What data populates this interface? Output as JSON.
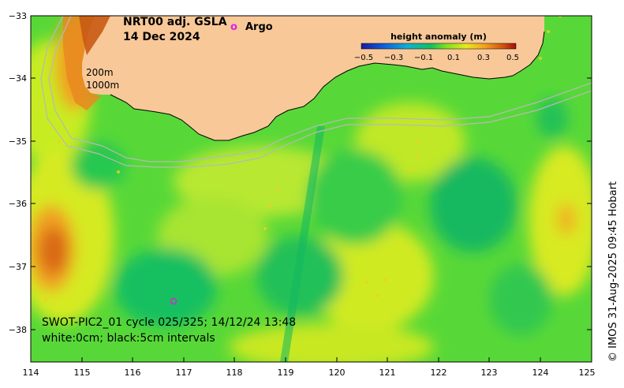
{
  "title": {
    "line1": "NRT00 adj. GSLA",
    "line2": "14 Dec 2024"
  },
  "legend": {
    "argo_marker": "o",
    "argo_label": "Argo"
  },
  "colorbar": {
    "title": "height anomaly (m)",
    "ticks": [
      "−0.5",
      "−0.3",
      "−0.1",
      "0.1",
      "0.3",
      "0.5"
    ],
    "min": -0.5,
    "max": 0.5
  },
  "isobaths": {
    "a": "200m",
    "b": "1000m"
  },
  "caption": {
    "line1": "SWOT-PIC2_01 cycle 025/325; 14/12/24 13:48",
    "line2": "white:0cm; black:5cm intervals"
  },
  "credit": "© IMOS 31-Aug-2025 09:45 Hobart",
  "axes": {
    "x_ticks": [
      "114",
      "115",
      "116",
      "117",
      "118",
      "119",
      "120",
      "121",
      "122",
      "123",
      "124",
      "125"
    ],
    "y_ticks": [
      "−33",
      "−34",
      "−35",
      "−36",
      "−37",
      "−38"
    ],
    "lon_range": [
      114,
      125
    ],
    "lat_range": [
      -33,
      -38.5
    ]
  },
  "colors": {
    "land": "#f8c898",
    "argo": "#e020e0"
  }
}
